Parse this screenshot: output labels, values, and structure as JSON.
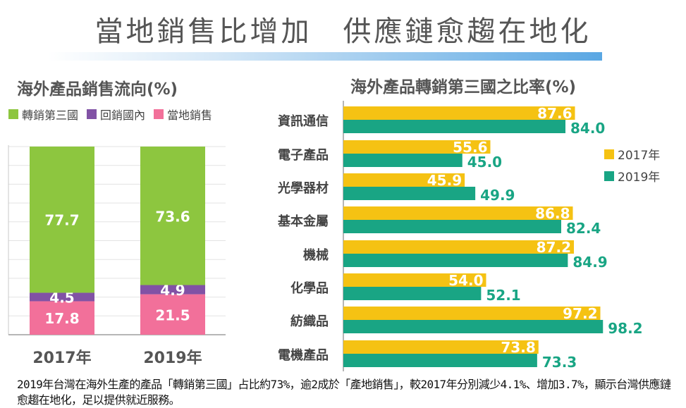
{
  "title": "當地銷售比增加　供應鏈愈趨在地化",
  "colors": {
    "green": "#8dc63f",
    "purple": "#8152a5",
    "pink": "#f2709a",
    "yellow": "#f5c213",
    "teal": "#19a584"
  },
  "caption": "2019年台灣在海外生產的產品「轉銷第三國」占比約73%，逾2成於「產地銷售」，較2017年分別減少4.1%、增加3.7%，顯示台灣供應鏈愈趨在地化，足以提供就近服務。",
  "chart_data": [
    {
      "type": "bar",
      "stacked": true,
      "title": "海外產品銷售流向(%)",
      "categories": [
        "2017年",
        "2019年"
      ],
      "series": [
        {
          "name": "轉銷第三國",
          "values": [
            77.7,
            73.6
          ],
          "color": "#8dc63f"
        },
        {
          "name": "回銷國內",
          "values": [
            4.5,
            4.9
          ],
          "color": "#8152a5"
        },
        {
          "name": "當地銷售",
          "values": [
            17.8,
            21.5
          ],
          "color": "#f2709a"
        }
      ],
      "legend_position": "top",
      "grid": true,
      "ylim": [
        0,
        100
      ]
    },
    {
      "type": "bar",
      "orientation": "horizontal",
      "title": "海外產品轉銷第三國之比率(%)",
      "categories": [
        "資訊通信",
        "電子產品",
        "光學器材",
        "基本金屬",
        "機械",
        "化學品",
        "紡織品",
        "電機產品"
      ],
      "series": [
        {
          "name": "2017年",
          "values": [
            87.6,
            55.6,
            45.9,
            86.8,
            87.2,
            54.0,
            97.2,
            73.8
          ],
          "color": "#f5c213"
        },
        {
          "name": "2019年",
          "values": [
            84.0,
            45.0,
            49.9,
            82.4,
            84.9,
            52.1,
            98.2,
            73.3
          ],
          "color": "#19a584"
        }
      ],
      "legend_position": "right",
      "grid": false,
      "xlim": [
        0,
        100
      ]
    }
  ]
}
